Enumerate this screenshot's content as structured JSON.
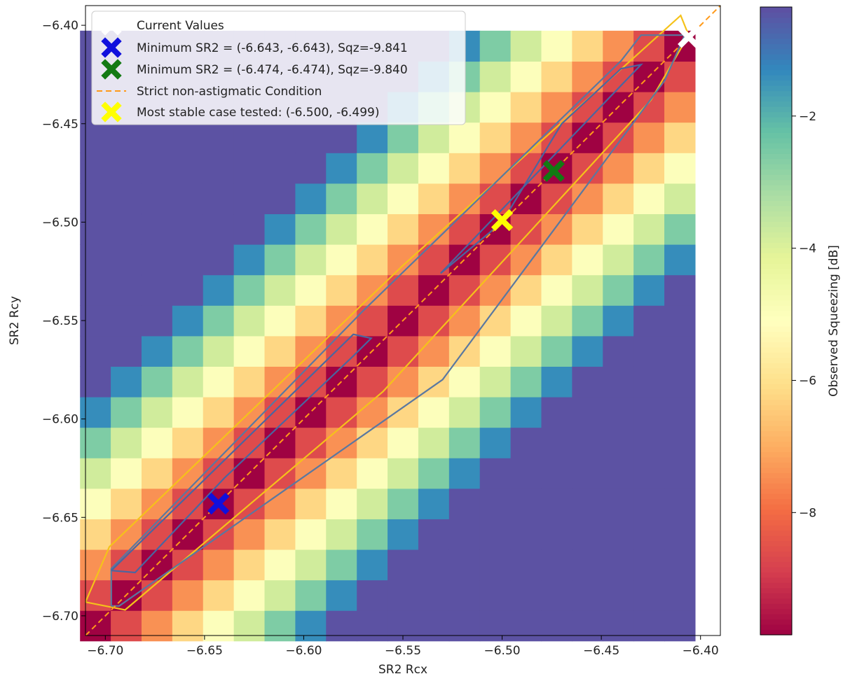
{
  "chart_data": {
    "type": "heatmap",
    "title": "",
    "xlabel": "SR2 Rcx",
    "ylabel": "SR2 Rcy",
    "colorbar_label": "Observed Squeezing [dB]",
    "xlim": [
      -6.71,
      -6.39
    ],
    "ylim": [
      -6.71,
      -6.39
    ],
    "x_ticks": [
      -6.7,
      -6.65,
      -6.6,
      -6.55,
      -6.5,
      -6.45,
      -6.4
    ],
    "x_tick_labels": [
      "−6.70",
      "−6.65",
      "−6.60",
      "−6.55",
      "−6.50",
      "−6.45",
      "−6.40"
    ],
    "y_ticks": [
      -6.4,
      -6.45,
      -6.5,
      -6.55,
      -6.6,
      -6.65,
      -6.7
    ],
    "y_tick_labels": [
      "−6.40",
      "−6.45",
      "−6.50",
      "−6.55",
      "−6.60",
      "−6.65",
      "−6.70"
    ],
    "colorbar_ticks": [
      -2,
      -4,
      -6,
      -8
    ],
    "colorbar_tick_labels": [
      "−2",
      "−4",
      "−6",
      "−8"
    ],
    "colorbar_range": [
      -9.85,
      -0.35
    ],
    "colormap": "Spectral",
    "grid": false,
    "legend_position": "top-left",
    "heatmap": {
      "x_start": -6.705,
      "x_step": 0.0155,
      "nx": 20,
      "y_start": -6.705,
      "y_step": 0.0155,
      "ny": 20,
      "diag_min": -9.84,
      "slope_db_per_unit": 78,
      "max_db": -0.4
    },
    "contours": [
      {
        "level": "outer",
        "color": "#f5c21a",
        "points": [
          [
            -6.71,
            -6.693
          ],
          [
            -6.698,
            -6.665
          ],
          [
            -6.55,
            -6.522
          ],
          [
            -6.41,
            -6.395
          ],
          [
            -6.406,
            -6.405
          ],
          [
            -6.425,
            -6.438
          ],
          [
            -6.56,
            -6.586
          ],
          [
            -6.69,
            -6.697
          ],
          [
            -6.71,
            -6.693
          ]
        ]
      },
      {
        "level": "mid",
        "color": "#5a78a0",
        "points": [
          [
            -6.697,
            -6.695
          ],
          [
            -6.697,
            -6.676
          ],
          [
            -6.57,
            -6.545
          ],
          [
            -6.44,
            -6.418
          ],
          [
            -6.43,
            -6.405
          ],
          [
            -6.408,
            -6.405
          ],
          [
            -6.418,
            -6.428
          ],
          [
            -6.53,
            -6.58
          ],
          [
            -6.693,
            -6.695
          ],
          [
            -6.697,
            -6.695
          ]
        ]
      },
      {
        "level": "inner-low",
        "color": "#4a66a0",
        "points": [
          [
            -6.697,
            -6.677
          ],
          [
            -6.575,
            -6.557
          ],
          [
            -6.566,
            -6.559
          ],
          [
            -6.575,
            -6.568
          ],
          [
            -6.64,
            -6.63
          ],
          [
            -6.685,
            -6.678
          ],
          [
            -6.697,
            -6.677
          ]
        ]
      },
      {
        "level": "inner-high",
        "color": "#4a66a0",
        "points": [
          [
            -6.531,
            -6.526
          ],
          [
            -6.43,
            -6.42
          ],
          [
            -6.44,
            -6.422
          ],
          [
            -6.47,
            -6.45
          ],
          [
            -6.5,
            -6.5
          ],
          [
            -6.531,
            -6.526
          ]
        ]
      }
    ],
    "diagonal": {
      "label": "Strict non-astigmatic Condition",
      "color": "#ff9a1a",
      "x": [
        -6.71,
        -6.39
      ],
      "y": [
        -6.71,
        -6.39
      ]
    },
    "markers": [
      {
        "name": "Current Values",
        "x": -6.406,
        "y": -6.406,
        "color": "#ffffff"
      },
      {
        "name": "Minimum SR2 = (-6.643, -6.643), Sqz=-9.841",
        "x": -6.643,
        "y": -6.643,
        "color": "#1010dd"
      },
      {
        "name": "Minimum SR2 = (-6.474, -6.474), Sqz=-9.840",
        "x": -6.474,
        "y": -6.474,
        "color": "#137a13"
      },
      {
        "name": "Most stable case tested: (-6.500, -6.499)",
        "x": -6.5,
        "y": -6.499,
        "color": "#ffff00"
      }
    ]
  }
}
